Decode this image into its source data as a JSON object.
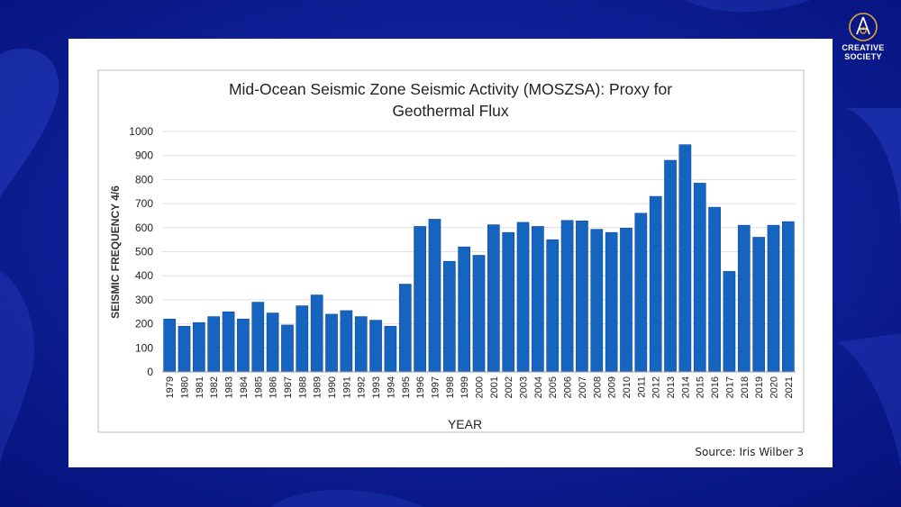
{
  "logo": {
    "name_line1": "CREATIVE",
    "name_line2": "SOCIETY"
  },
  "source_text": "Source: Iris Wilber 3",
  "colors": {
    "background": "#0a1a8c",
    "bar": "#1565c0",
    "bar_stroke": "#0d47a1"
  },
  "chart_data": {
    "type": "bar",
    "title_line1": "Mid-Ocean Seismic Zone Seismic Activity (MOSZSA): Proxy for",
    "title_line2": "Geothermal Flux",
    "xlabel": "YEAR",
    "ylabel": "SEISMIC FREQUENCY 4/6",
    "ylim": [
      0,
      1000
    ],
    "yticks": [
      0,
      100,
      200,
      300,
      400,
      500,
      600,
      700,
      800,
      900,
      1000
    ],
    "grid": true,
    "categories": [
      "1979",
      "1980",
      "1981",
      "1982",
      "1983",
      "1984",
      "1985",
      "1986",
      "1987",
      "1988",
      "1989",
      "1990",
      "1991",
      "1992",
      "1993",
      "1994",
      "1995",
      "1996",
      "1997",
      "1998",
      "1999",
      "2000",
      "2001",
      "2002",
      "2003",
      "2004",
      "2005",
      "2006",
      "2007",
      "2008",
      "2009",
      "2010",
      "2011",
      "2012",
      "2013",
      "2014",
      "2015",
      "2016",
      "2017",
      "2018",
      "2019",
      "2020",
      "2021"
    ],
    "values": [
      220,
      190,
      205,
      230,
      250,
      220,
      290,
      245,
      195,
      275,
      320,
      240,
      255,
      230,
      215,
      190,
      365,
      605,
      635,
      460,
      520,
      485,
      612,
      580,
      622,
      605,
      550,
      630,
      628,
      593,
      580,
      598,
      660,
      730,
      880,
      945,
      785,
      685,
      418,
      610,
      560,
      610,
      625
    ]
  }
}
